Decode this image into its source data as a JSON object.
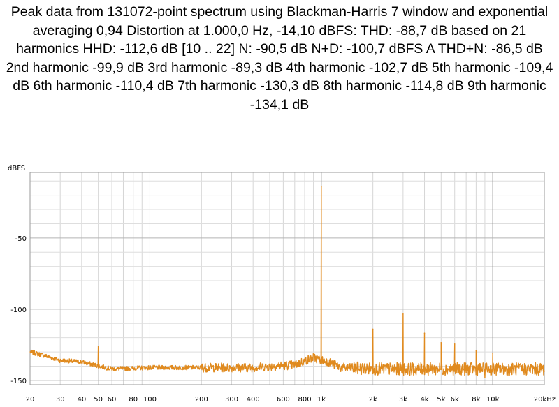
{
  "chart_data": {
    "type": "line",
    "title": "Peak data from 131072-point spectrum using Blackman-Harris 7 window and exponential averaging 0,94 Distortion at 1.000,0 Hz, -14,10 dBFS: THD: -88,7 dB based on 21 harmonics HHD: -112,6 dB [10 .. 22] N: -90,5 dB N+D: -100,7 dBFS A THD+N: -86,5 dB 2nd harmonic -99,9 dB 3rd harmonic -89,3 dB 4th harmonic -102,7 dB 5th harmonic -109,4 dB 6th harmonic -110,4 dB 7th harmonic -130,3 dB 8th harmonic -114,8 dB 9th harmonic -134,1 dB",
    "ylabel": "dBFS",
    "xlabel": "",
    "x_scale": "log",
    "xlim": [
      20,
      20000
    ],
    "ylim": [
      -153,
      -4
    ],
    "grid": true,
    "line_color": "#e08a1e",
    "x_ticks": [
      {
        "v": 20,
        "label": "20"
      },
      {
        "v": 30,
        "label": "30"
      },
      {
        "v": 40,
        "label": "40"
      },
      {
        "v": 50,
        "label": "50"
      },
      {
        "v": 60,
        "label": "60"
      },
      {
        "v": 80,
        "label": "80"
      },
      {
        "v": 100,
        "label": "100"
      },
      {
        "v": 200,
        "label": "200"
      },
      {
        "v": 300,
        "label": "300"
      },
      {
        "v": 400,
        "label": "400"
      },
      {
        "v": 600,
        "label": "600"
      },
      {
        "v": 800,
        "label": "800"
      },
      {
        "v": 1000,
        "label": "1k"
      },
      {
        "v": 2000,
        "label": "2k"
      },
      {
        "v": 3000,
        "label": "3k"
      },
      {
        "v": 4000,
        "label": "4k"
      },
      {
        "v": 5000,
        "label": "5k"
      },
      {
        "v": 6000,
        "label": "6k"
      },
      {
        "v": 8000,
        "label": "8k"
      },
      {
        "v": 10000,
        "label": "10k"
      },
      {
        "v": 20000,
        "label": "20kHz"
      }
    ],
    "y_ticks": [
      {
        "v": -50,
        "label": "-50"
      },
      {
        "v": -100,
        "label": "-100"
      },
      {
        "v": -150,
        "label": "-150"
      }
    ],
    "noise_floor": [
      {
        "x": 20,
        "y": -130
      },
      {
        "x": 25,
        "y": -133
      },
      {
        "x": 30,
        "y": -136
      },
      {
        "x": 40,
        "y": -137
      },
      {
        "x": 60,
        "y": -142
      },
      {
        "x": 100,
        "y": -141
      },
      {
        "x": 200,
        "y": -141
      },
      {
        "x": 400,
        "y": -141
      },
      {
        "x": 700,
        "y": -139
      },
      {
        "x": 900,
        "y": -134
      },
      {
        "x": 1100,
        "y": -137
      },
      {
        "x": 1300,
        "y": -141
      },
      {
        "x": 2000,
        "y": -142
      },
      {
        "x": 5000,
        "y": -142
      },
      {
        "x": 20000,
        "y": -142
      }
    ],
    "peaks": [
      {
        "x": 50,
        "y": -126
      },
      {
        "x": 1000,
        "y": -14.1
      },
      {
        "x": 2000,
        "y": -114
      },
      {
        "x": 3000,
        "y": -103.4
      },
      {
        "x": 4000,
        "y": -116.8
      },
      {
        "x": 5000,
        "y": -123.5
      },
      {
        "x": 6000,
        "y": -124.5
      },
      {
        "x": 7000,
        "y": -144.4
      },
      {
        "x": 8000,
        "y": -128.9
      },
      {
        "x": 9000,
        "y": -148.2
      },
      {
        "x": 10000,
        "y": -131
      }
    ]
  }
}
